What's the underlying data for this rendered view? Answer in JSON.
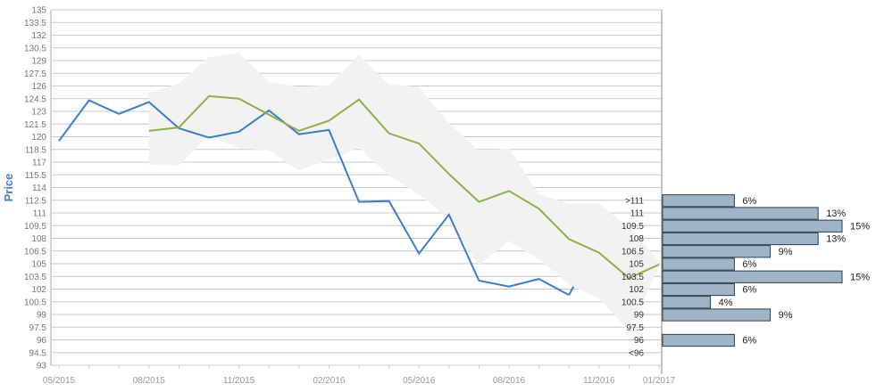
{
  "chart_data": {
    "type": "line",
    "ylabel": "Price",
    "ylim": [
      93,
      135
    ],
    "y_ticks": [
      "135",
      "133.5",
      "132",
      "130.5",
      "129",
      "127.5",
      "126",
      "124.5",
      "123",
      "121.5",
      "120",
      "118.5",
      "117",
      "115.5",
      "114",
      "112.5",
      "111",
      "109.5",
      "108",
      "106.5",
      "105",
      "103.5",
      "102",
      "100.5",
      "99",
      "97.5",
      "96",
      "94.5",
      "93"
    ],
    "x_ticks": [
      "05/2015",
      "08/2015",
      "11/2015",
      "02/2016",
      "05/2016",
      "08/2016",
      "11/2016",
      "01/2017"
    ],
    "grid": true,
    "x": [
      "05/2015",
      "06/2015",
      "07/2015",
      "08/2015",
      "09/2015",
      "10/2015",
      "11/2015",
      "12/2015",
      "01/2016",
      "02/2016",
      "03/2016",
      "04/2016",
      "05/2016",
      "06/2016",
      "07/2016",
      "08/2016",
      "09/2016",
      "10/2016",
      "11/2016",
      "12/2016",
      "01/2017"
    ],
    "series": [
      {
        "name": "",
        "color": "#3a7ecf",
        "values": [
          119.5,
          124.3,
          122.7,
          124.1,
          121,
          119.9,
          120.6,
          123.1,
          120.3,
          120.8,
          112.3,
          112.4,
          106.2,
          110.8,
          103,
          102.3,
          103.2,
          101.3,
          null,
          null,
          null
        ]
      },
      {
        "name": "",
        "color": "#8db048",
        "values": [
          null,
          null,
          null,
          120.7,
          121.1,
          124.8,
          124.5,
          122.6,
          120.7,
          121.9,
          124.4,
          120.4,
          119.2,
          115.6,
          112.3,
          113.6,
          111.5,
          107.9,
          106.3,
          103.3,
          104.9
        ]
      }
    ],
    "band": {
      "color": "#f2f2f2",
      "upper": [
        null,
        null,
        null,
        125.2,
        126.3,
        129.4,
        129.9,
        126.5,
        125.9,
        126.1,
        129.7,
        126.2,
        125.9,
        121.6,
        118.3,
        118.6,
        113.2,
        112.1,
        112.1,
        109.3,
        105.3
      ],
      "lower": [
        null,
        null,
        null,
        116.7,
        116.6,
        120.2,
        118.6,
        118.4,
        116,
        117.3,
        118.7,
        115.4,
        113.2,
        110.3,
        104.8,
        107.7,
        105.5,
        102.5,
        100.9,
        97,
        104.6
      ]
    },
    "histogram": {
      "bins": [
        {
          "label": ">111",
          "center": 112.5,
          "pct": 6,
          "text": "6%"
        },
        {
          "label": "111",
          "center": 111,
          "pct": 13,
          "text": "13%"
        },
        {
          "label": "109.5",
          "center": 109.5,
          "pct": 15,
          "text": "15%"
        },
        {
          "label": "108",
          "center": 108,
          "pct": 13,
          "text": "13%"
        },
        {
          "label": "106.5",
          "center": 106.5,
          "pct": 9,
          "text": "9%"
        },
        {
          "label": "105",
          "center": 105,
          "pct": 6,
          "text": "6%"
        },
        {
          "label": "103.5",
          "center": 103.5,
          "pct": 15,
          "text": "15%"
        },
        {
          "label": "102",
          "center": 102,
          "pct": 6,
          "text": "6%"
        },
        {
          "label": "100.5",
          "center": 100.5,
          "pct": 4,
          "text": "4%"
        },
        {
          "label": "99",
          "center": 99,
          "pct": 9,
          "text": "9%"
        },
        {
          "label": "97.5",
          "center": 97.5,
          "pct": 0,
          "text": ""
        },
        {
          "label": "96",
          "center": 96,
          "pct": 6,
          "text": "6%"
        },
        {
          "label": "<96",
          "center": 94.5,
          "pct": 0,
          "text": ""
        }
      ],
      "bar_color": "#9fb5c5",
      "bar_border": "#2e3e4e"
    }
  }
}
